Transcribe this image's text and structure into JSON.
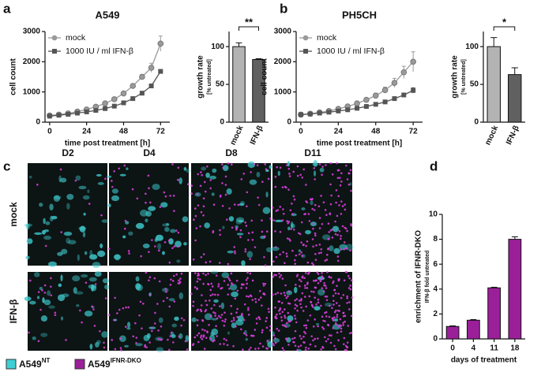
{
  "chart_data": [
    {
      "panel": "a",
      "type": "line",
      "title": "A549",
      "x_label": "time post treatment [h]",
      "y_label": "cell count",
      "x": [
        0,
        6,
        12,
        18,
        24,
        30,
        36,
        42,
        48,
        54,
        60,
        66,
        72
      ],
      "xlim": [
        -3,
        78
      ],
      "xticks": [
        0,
        24,
        48,
        72
      ],
      "ylim": [
        0,
        3000
      ],
      "yticks": [
        0,
        1000,
        2000,
        3000
      ],
      "series": [
        {
          "name": "mock",
          "color": "#9a9a9a",
          "marker": "circle",
          "values": [
            220,
            250,
            290,
            350,
            420,
            510,
            620,
            760,
            950,
            1200,
            1500,
            1800,
            2600
          ],
          "errors": [
            20,
            20,
            20,
            25,
            25,
            30,
            30,
            40,
            50,
            60,
            80,
            150,
            250
          ]
        },
        {
          "name": "1000 IU / ml IFN-β",
          "color": "#555555",
          "marker": "square",
          "values": [
            200,
            230,
            260,
            300,
            340,
            390,
            450,
            530,
            640,
            780,
            960,
            1200,
            1680
          ],
          "errors": [
            15,
            15,
            15,
            20,
            20,
            20,
            25,
            30,
            30,
            40,
            50,
            60,
            60
          ]
        }
      ]
    },
    {
      "panel": "a",
      "type": "bar",
      "y_label": "growth rate",
      "y_sublabel": "[% untreated]",
      "categories": [
        "mock",
        "IFN-β"
      ],
      "values": [
        100,
        83
      ],
      "errors": [
        5,
        1
      ],
      "colors": [
        "#b3b3b3",
        "#606060"
      ],
      "ylim": [
        0,
        120
      ],
      "yticks": [
        0,
        50,
        100
      ],
      "significance": "**"
    },
    {
      "panel": "b",
      "type": "line",
      "title": "PH5CH",
      "x_label": "time post treatment [h]",
      "y_label": "cell count",
      "x": [
        0,
        6,
        12,
        18,
        24,
        30,
        36,
        42,
        48,
        54,
        60,
        66,
        72
      ],
      "xlim": [
        -3,
        78
      ],
      "xticks": [
        0,
        24,
        48,
        72
      ],
      "ylim": [
        0,
        3000
      ],
      "yticks": [
        0,
        1000,
        2000,
        3000
      ],
      "series": [
        {
          "name": "mock",
          "color": "#9a9a9a",
          "marker": "circle",
          "values": [
            250,
            280,
            320,
            370,
            440,
            520,
            620,
            740,
            880,
            1060,
            1300,
            1650,
            2000
          ],
          "errors": [
            20,
            20,
            25,
            25,
            30,
            40,
            50,
            60,
            80,
            100,
            150,
            200,
            330
          ]
        },
        {
          "name": "1000 IU / ml IFN-β",
          "color": "#555555",
          "marker": "square",
          "values": [
            250,
            270,
            300,
            330,
            370,
            410,
            460,
            520,
            590,
            670,
            780,
            900,
            1050
          ],
          "errors": [
            15,
            15,
            15,
            20,
            20,
            20,
            25,
            30,
            30,
            40,
            50,
            60,
            90
          ]
        }
      ]
    },
    {
      "panel": "b",
      "type": "bar",
      "y_label": "growth rate",
      "y_sublabel": "[% untreated]",
      "categories": [
        "mock",
        "IFN-β"
      ],
      "values": [
        100,
        63
      ],
      "errors": [
        12,
        9
      ],
      "colors": [
        "#b3b3b3",
        "#606060"
      ],
      "ylim": [
        0,
        120
      ],
      "yticks": [
        0,
        50,
        100
      ],
      "significance": "*"
    },
    {
      "panel": "d",
      "type": "bar",
      "y_label": "enrichment of IFNR-DKO",
      "y_sublabel": "IFN-β fold untreated",
      "x_label": "days of treatment",
      "categories": [
        "0",
        "4",
        "11",
        "18"
      ],
      "values": [
        1,
        1.5,
        4.1,
        8
      ],
      "errors": [
        0.05,
        0.05,
        0.05,
        0.2
      ],
      "colors": [
        "#9c1f9a",
        "#9c1f9a",
        "#9c1f9a",
        "#9c1f9a"
      ],
      "ylim": [
        0,
        10
      ],
      "yticks": [
        0,
        2,
        4,
        6,
        8,
        10
      ]
    }
  ],
  "panel_c": {
    "label": "c",
    "columns": [
      "D2",
      "D4",
      "D8",
      "D11"
    ],
    "rows": [
      "mock",
      "IFN-β"
    ],
    "legend": [
      {
        "base": "A549",
        "sup": "NT",
        "color": "#3fd0d4"
      },
      {
        "base": "A549",
        "sup": "IFNR-DKO",
        "color": "#9c1f9a"
      }
    ]
  }
}
